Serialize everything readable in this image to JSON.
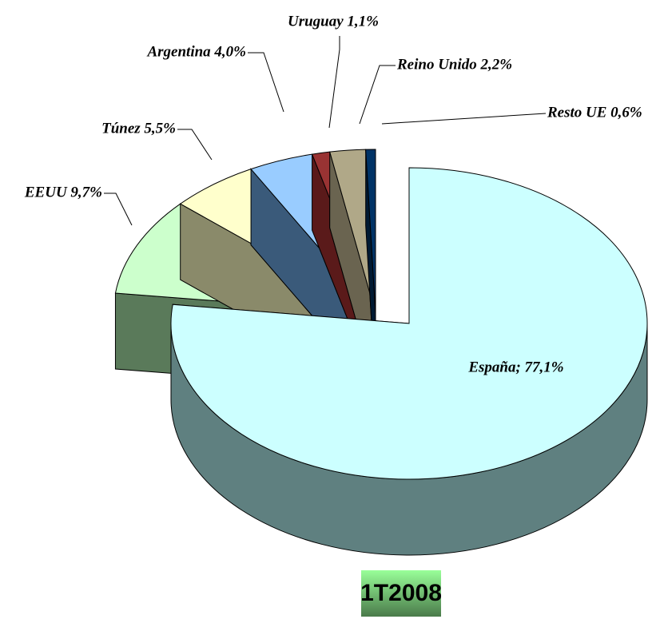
{
  "chart_data": {
    "type": "pie3d",
    "title": "1T2008",
    "values": [
      77.1,
      9.7,
      5.5,
      4.0,
      1.1,
      2.2,
      0.6
    ],
    "value_labels": [
      "España; 77,1%",
      "EEUU 9,7%",
      "Túnez 5,5%",
      "Argentina 4,0%",
      "Uruguay 1,1%",
      "Reino Unido 2,2%",
      "Resto UE 0,6%"
    ],
    "colors": [
      "#ccffff",
      "#ccffcc",
      "#ffffcc",
      "#99ccff",
      "#993333",
      "#b0a888",
      "#003366"
    ],
    "side_colors": [
      "#5f8080",
      "#5a7a5a",
      "#8a8a6a",
      "#3a5a7a",
      "#5a1a1a",
      "#6a6450",
      "#001a33"
    ]
  }
}
